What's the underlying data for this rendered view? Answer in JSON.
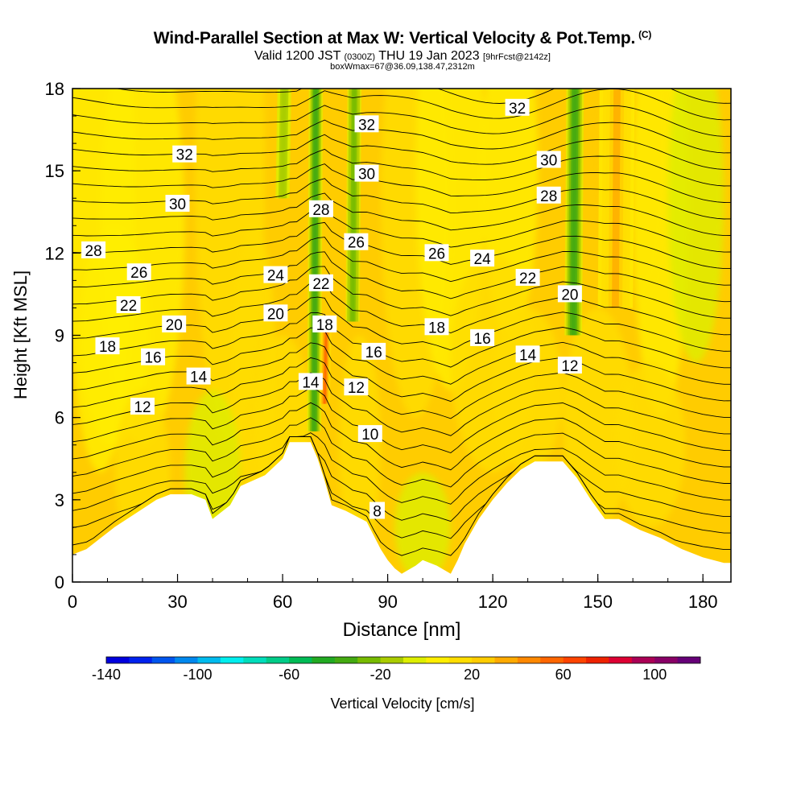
{
  "header": {
    "title": "Wind-Parallel Section at Max W: Vertical Velocity & Pot.Temp.",
    "title_unit": "(C)",
    "valid_prefix": "Valid 1200 JST",
    "valid_utc": "(0300Z)",
    "valid_date": "THU 19 Jan 2023",
    "forecast_info": "[9hrFcst@2142z]",
    "box_info": "boxWmax=67@36.09,138.47,2312m"
  },
  "chart_data": {
    "type": "heatmap",
    "title": "Wind-Parallel Section at Max W: Vertical Velocity & Pot.Temp.",
    "xlabel": "Distance [nm]",
    "ylabel": "Height [Kft MSL]",
    "xlim": [
      0,
      188
    ],
    "ylim": [
      0,
      18
    ],
    "x_ticks": [
      0,
      30,
      60,
      90,
      120,
      150,
      180
    ],
    "y_ticks": [
      0,
      3,
      6,
      9,
      12,
      15,
      18
    ],
    "colorbar": {
      "label": "Vertical Velocity [cm/s]",
      "min": -140,
      "max": 110,
      "step": 10,
      "tick_values": [
        -140,
        -100,
        -60,
        -20,
        20,
        60,
        100
      ],
      "colors": [
        "#0000dd",
        "#0022ee",
        "#0055ee",
        "#0088ee",
        "#00bbee",
        "#00eeee",
        "#00ddbb",
        "#00cc88",
        "#00bb55",
        "#22aa22",
        "#44aa11",
        "#77bb00",
        "#aacc00",
        "#ddee00",
        "#ffee00",
        "#ffdd00",
        "#ffcc00",
        "#ffaa00",
        "#ff8800",
        "#ff6600",
        "#ff4400",
        "#ee2200",
        "#dd0033",
        "#aa0055",
        "#880066",
        "#660077"
      ]
    },
    "terrain_top_kft": [
      [
        0,
        1.0
      ],
      [
        4,
        1.2
      ],
      [
        8,
        1.6
      ],
      [
        12,
        2.0
      ],
      [
        18,
        2.5
      ],
      [
        24,
        3.0
      ],
      [
        28,
        3.2
      ],
      [
        34,
        3.2
      ],
      [
        38,
        3.0
      ],
      [
        40,
        2.3
      ],
      [
        45,
        2.8
      ],
      [
        48,
        3.5
      ],
      [
        55,
        3.9
      ],
      [
        60,
        4.5
      ],
      [
        62,
        5.1
      ],
      [
        68,
        5.1
      ],
      [
        70,
        4.5
      ],
      [
        72,
        3.7
      ],
      [
        74,
        2.8
      ],
      [
        78,
        2.6
      ],
      [
        84,
        2.2
      ],
      [
        86,
        1.7
      ],
      [
        88,
        1.2
      ],
      [
        90,
        0.8
      ],
      [
        92,
        0.5
      ],
      [
        94,
        0.3
      ],
      [
        98,
        0.6
      ],
      [
        100,
        0.8
      ],
      [
        104,
        0.6
      ],
      [
        108,
        0.3
      ],
      [
        110,
        0.8
      ],
      [
        112,
        1.4
      ],
      [
        116,
        2.3
      ],
      [
        120,
        3.0
      ],
      [
        124,
        3.6
      ],
      [
        128,
        4.1
      ],
      [
        132,
        4.4
      ],
      [
        140,
        4.4
      ],
      [
        144,
        3.8
      ],
      [
        148,
        3.0
      ],
      [
        152,
        2.3
      ],
      [
        156,
        2.3
      ],
      [
        162,
        1.9
      ],
      [
        168,
        1.6
      ],
      [
        174,
        1.2
      ],
      [
        180,
        0.9
      ],
      [
        186,
        0.7
      ],
      [
        188,
        0.7
      ]
    ],
    "wind_bands": [
      {
        "x_center": 69,
        "x_width": 4,
        "y_top": 18,
        "y_bottom": 5.5,
        "peak_cms": -40
      },
      {
        "x_center": 80,
        "x_width": 4,
        "y_top": 18,
        "y_bottom": 9.5,
        "peak_cms": -30
      },
      {
        "x_center": 60,
        "x_width": 4,
        "y_top": 18,
        "y_bottom": 14.0,
        "peak_cms": -20
      },
      {
        "x_center": 143,
        "x_width": 5,
        "y_top": 18,
        "y_bottom": 9.0,
        "peak_cms": -40
      },
      {
        "x_center": 72,
        "x_width": 3,
        "y_top": 9.5,
        "y_bottom": 6.5,
        "peak_cms": 50
      },
      {
        "x_center": 155,
        "x_width": 10,
        "y_top": 18,
        "y_bottom": 10,
        "peak_cms": 30
      }
    ],
    "contour_labels": [
      {
        "text": "32",
        "x": 32,
        "y": 15.6
      },
      {
        "text": "32",
        "x": 84,
        "y": 16.7
      },
      {
        "text": "32",
        "x": 127,
        "y": 17.3
      },
      {
        "text": "30",
        "x": 30,
        "y": 13.8
      },
      {
        "text": "30",
        "x": 84,
        "y": 14.9
      },
      {
        "text": "30",
        "x": 136,
        "y": 15.4
      },
      {
        "text": "28",
        "x": 6,
        "y": 12.1
      },
      {
        "text": "28",
        "x": 71,
        "y": 13.6
      },
      {
        "text": "28",
        "x": 136,
        "y": 14.1
      },
      {
        "text": "26",
        "x": 19,
        "y": 11.3
      },
      {
        "text": "26",
        "x": 81,
        "y": 12.4
      },
      {
        "text": "26",
        "x": 104,
        "y": 12.0
      },
      {
        "text": "24",
        "x": 58,
        "y": 11.2
      },
      {
        "text": "24",
        "x": 117,
        "y": 11.8
      },
      {
        "text": "22",
        "x": 16,
        "y": 10.1
      },
      {
        "text": "22",
        "x": 71,
        "y": 10.9
      },
      {
        "text": "22",
        "x": 130,
        "y": 11.1
      },
      {
        "text": "20",
        "x": 29,
        "y": 9.4
      },
      {
        "text": "20",
        "x": 58,
        "y": 9.8
      },
      {
        "text": "20",
        "x": 142,
        "y": 10.5
      },
      {
        "text": "18",
        "x": 10,
        "y": 8.6
      },
      {
        "text": "18",
        "x": 72,
        "y": 9.4
      },
      {
        "text": "18",
        "x": 104,
        "y": 9.3
      },
      {
        "text": "16",
        "x": 23,
        "y": 8.2
      },
      {
        "text": "16",
        "x": 86,
        "y": 8.4
      },
      {
        "text": "16",
        "x": 117,
        "y": 8.9
      },
      {
        "text": "14",
        "x": 36,
        "y": 7.5
      },
      {
        "text": "14",
        "x": 68,
        "y": 7.3
      },
      {
        "text": "14",
        "x": 130,
        "y": 8.3
      },
      {
        "text": "12",
        "x": 20,
        "y": 6.4
      },
      {
        "text": "12",
        "x": 81,
        "y": 7.1
      },
      {
        "text": "12",
        "x": 142,
        "y": 7.9
      },
      {
        "text": "10",
        "x": 85,
        "y": 5.4
      },
      {
        "text": "8",
        "x": 87,
        "y": 2.6
      }
    ]
  }
}
